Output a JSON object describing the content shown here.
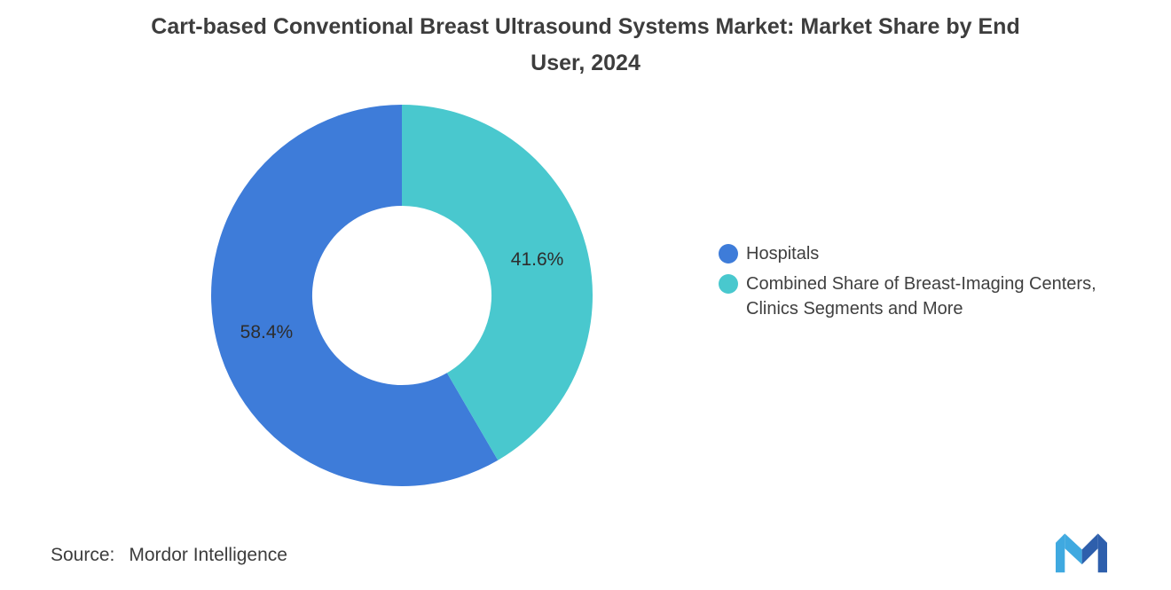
{
  "chart_data": {
    "type": "pie",
    "variant": "donut",
    "title": "Cart-based Conventional Breast Ultrasound Systems Market: Market Share by End User, 2024",
    "slices": [
      {
        "name": "Hospitals",
        "value": 58.4,
        "label": "58.4%",
        "color": "#3E7CD9"
      },
      {
        "name": "Combined Share of Breast-Imaging Centers, Clinics Segments and More",
        "value": 41.6,
        "label": "41.6%",
        "color": "#49C8CE"
      }
    ],
    "total": 100,
    "start_angle_deg": 0,
    "direction": "counterclockwise",
    "inner_radius_pct": 47,
    "legend_position": "right",
    "grid": false
  },
  "source": {
    "prefix": "Source:",
    "text": "Mordor Intelligence"
  },
  "logo": {
    "alt": "mordor-intelligence-logo",
    "light_color": "#3FA9E0",
    "dark_color": "#2E5FAC"
  }
}
